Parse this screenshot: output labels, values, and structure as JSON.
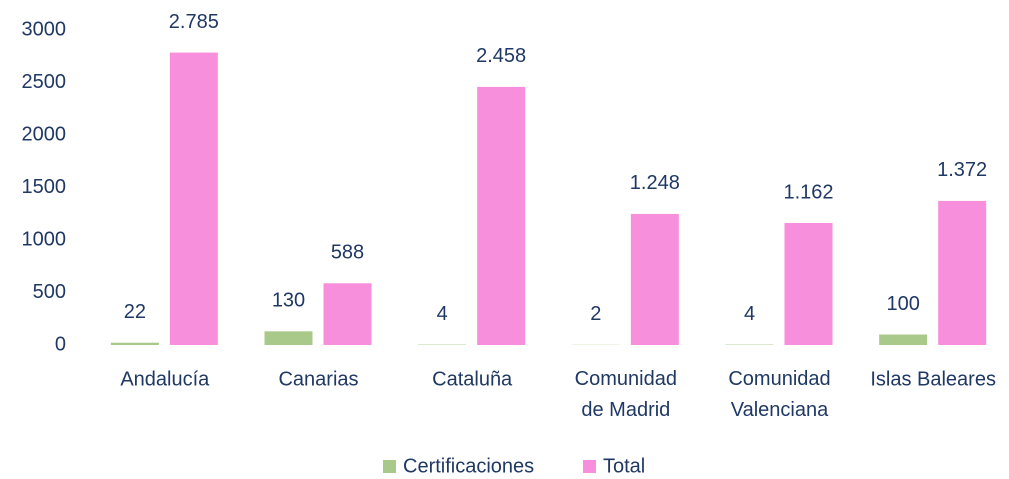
{
  "chart_data": {
    "type": "bar",
    "categories": [
      "Andalucía",
      "Canarias",
      "Cataluña",
      "Comunidad de Madrid",
      "Comunidad Valenciana",
      "Islas Baleares"
    ],
    "series": [
      {
        "name": "Certificaciones",
        "color": "#a9c98a",
        "values": [
          22,
          130,
          4,
          2,
          4,
          100
        ]
      },
      {
        "name": "Total",
        "color": "#f78fdc",
        "values": [
          2785,
          588,
          2458,
          1248,
          1162,
          1372
        ],
        "value_labels": [
          "2.785",
          "588",
          "2.458",
          "1.248",
          "1.162",
          "1.372"
        ]
      }
    ],
    "ylim": [
      0,
      3000
    ],
    "yticks": [
      0,
      500,
      1000,
      1500,
      2000,
      2500,
      3000
    ],
    "grid": false
  }
}
